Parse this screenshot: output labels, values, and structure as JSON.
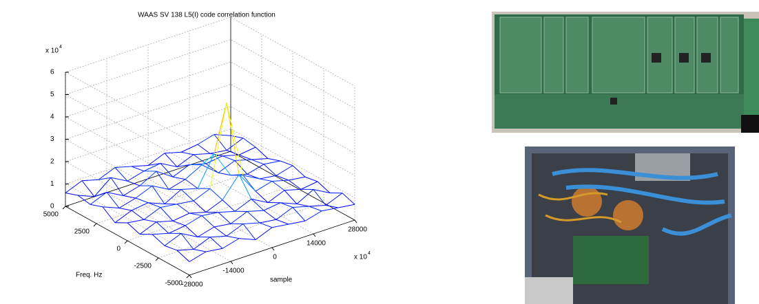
{
  "chart_data": {
    "type": "mesh",
    "title": "WAAS SV 138 L5(I) code correlation function",
    "x_label": "sample",
    "y_label": "Freq. Hz",
    "z_multiplier": {
      "base": "x 10",
      "exp": "4"
    },
    "x_multiplier": {
      "base": "x 10",
      "exp": "4"
    },
    "x": [
      -28000,
      -22400,
      -16800,
      -11200,
      -5600,
      0,
      5600,
      11200,
      16800,
      22400,
      28000
    ],
    "y": [
      5000,
      4000,
      3000,
      2000,
      1000,
      0,
      -1000,
      -2000,
      -3000,
      -4000,
      -5000
    ],
    "z": [
      [
        0.6,
        0.9,
        0.7,
        1.0,
        0.8,
        0.6,
        0.9,
        0.7,
        0.8,
        1.0,
        0.7
      ],
      [
        0.8,
        0.5,
        1.1,
        0.7,
        0.9,
        1.0,
        0.6,
        0.9,
        0.7,
        0.6,
        0.9
      ],
      [
        0.7,
        1.0,
        0.6,
        0.8,
        1.2,
        0.7,
        1.0,
        0.8,
        0.9,
        0.7,
        0.8
      ],
      [
        0.9,
        0.6,
        0.8,
        1.1,
        0.7,
        0.9,
        1.3,
        0.7,
        1.0,
        0.8,
        0.6
      ],
      [
        0.5,
        0.8,
        0.9,
        0.6,
        1.0,
        0.8,
        2.1,
        0.9,
        0.7,
        0.9,
        0.8
      ],
      [
        0.8,
        0.7,
        1.0,
        0.9,
        0.8,
        1.1,
        4.7,
        1.2,
        0.8,
        0.7,
        0.9
      ],
      [
        0.6,
        0.9,
        0.7,
        0.8,
        0.6,
        0.9,
        1.8,
        0.8,
        1.0,
        0.8,
        0.7
      ],
      [
        0.9,
        0.7,
        0.8,
        1.0,
        0.9,
        0.7,
        1.0,
        0.6,
        0.9,
        0.7,
        0.8
      ],
      [
        0.7,
        1.0,
        0.6,
        0.8,
        0.7,
        1.0,
        0.8,
        0.9,
        0.6,
        1.0,
        0.6
      ],
      [
        0.8,
        0.6,
        0.9,
        0.7,
        1.0,
        0.8,
        0.7,
        1.0,
        0.8,
        0.6,
        0.9
      ],
      [
        0.6,
        0.8,
        0.7,
        0.9,
        0.6,
        0.9,
        0.8,
        0.7,
        0.9,
        0.8,
        0.7
      ]
    ],
    "xlim": [
      -28000,
      28000
    ],
    "ylim": [
      -5000,
      5000
    ],
    "zlim": [
      0,
      6
    ],
    "xticks": [
      -28000,
      -14000,
      0,
      14000,
      28000
    ],
    "yticks": [
      -5000,
      -2500,
      0,
      2500,
      5000
    ],
    "zticks": [
      0,
      1,
      2,
      3,
      4,
      5,
      6
    ],
    "colormap": "jet",
    "grid": true
  }
}
